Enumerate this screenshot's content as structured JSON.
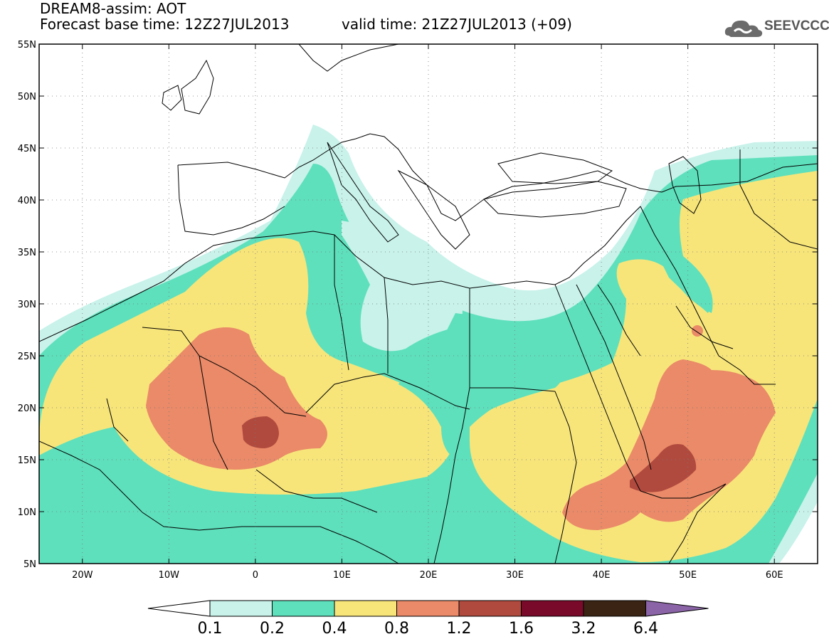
{
  "header": {
    "title_line1": "DREAM8-assim: AOT",
    "base_time": "Forecast base time: 12Z27JUL2013",
    "valid_time": "valid time: 21Z27JUL2013 (+09)"
  },
  "logo": {
    "text": "SEEVCCC",
    "icon": "cloud-logo-icon"
  },
  "map": {
    "lat_labels": [
      "55N",
      "50N",
      "45N",
      "40N",
      "35N",
      "30N",
      "25N",
      "20N",
      "15N",
      "10N",
      "5N"
    ],
    "lon_labels": [
      "20W",
      "10W",
      "0",
      "10E",
      "20E",
      "30E",
      "40E",
      "50E",
      "60E"
    ],
    "lat_range": [
      5,
      55
    ],
    "lon_range": [
      -25,
      65
    ]
  },
  "colorbar": {
    "labels": [
      "0.1",
      "0.2",
      "0.4",
      "0.8",
      "1.2",
      "1.6",
      "3.2",
      "6.4"
    ],
    "colors": [
      "#c8f2ea",
      "#5ee0bc",
      "#f7e57a",
      "#ea8a68",
      "#b04a3e",
      "#7a0a2a",
      "#3b2414",
      "#8a64a6"
    ],
    "under_color": "#ffffff"
  },
  "colors": {
    "level1": "#c8f2ea",
    "level2": "#5ee0bc",
    "level3": "#f7e57a",
    "level4": "#ea8a68",
    "level5": "#b04a3e"
  }
}
